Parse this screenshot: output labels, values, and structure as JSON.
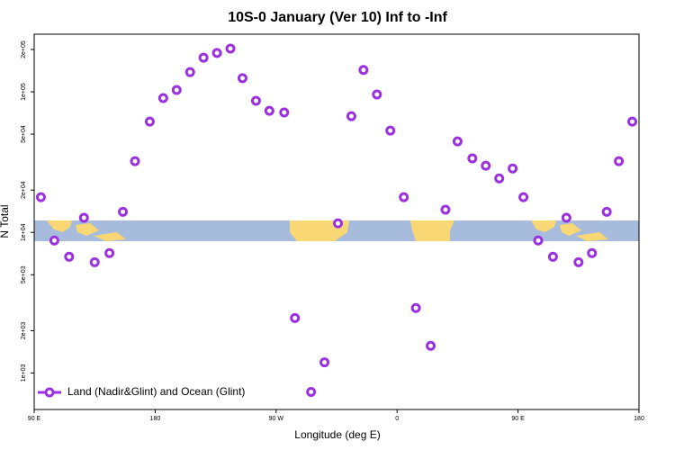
{
  "chart_data": {
    "type": "scatter",
    "title": "10S-0 January (Ver 10)   Inf to -Inf",
    "x_label": "Longitude (deg E)",
    "y_label": "N Total",
    "log_y": true,
    "xlim": [
      90,
      540
    ],
    "xticks": [
      {
        "value": 90,
        "label": "90 E"
      },
      {
        "value": 180,
        "label": "180"
      },
      {
        "value": 270,
        "label": "90 W"
      },
      {
        "value": 360,
        "label": "0"
      },
      {
        "value": 450,
        "label": "90 E"
      },
      {
        "value": 540,
        "label": "180"
      }
    ],
    "ylim": [
      550,
      257000
    ],
    "yticks": [
      {
        "value": 1000,
        "label": "1e+03"
      },
      {
        "value": 2000,
        "label": "2e+03"
      },
      {
        "value": 5000,
        "label": "5e+03"
      },
      {
        "value": 10000,
        "label": "1e+04"
      },
      {
        "value": 20000,
        "label": "2e+04"
      },
      {
        "value": 50000,
        "label": "5e+04"
      },
      {
        "value": 100000,
        "label": "1e+05"
      },
      {
        "value": 200000,
        "label": "2e+05"
      }
    ],
    "legend": "bottom-left",
    "series": [
      {
        "name": "Land (Nadir&Glint) and Ocean (Glint)",
        "color": "#9b30e0",
        "x": [
          95,
          105,
          116,
          127,
          135,
          146,
          156,
          165,
          176,
          186,
          196,
          206,
          216,
          226,
          236,
          245,
          255,
          265,
          276,
          284,
          296,
          306,
          316,
          326,
          335,
          345,
          355,
          365,
          374,
          385,
          396,
          405,
          416,
          426,
          436,
          446,
          454,
          465,
          476,
          486,
          495,
          505,
          516,
          525,
          535
        ],
        "values": [
          17800,
          8760,
          6710,
          12700,
          6140,
          7120,
          14000,
          32100,
          61400,
          90200,
          103000,
          138000,
          175000,
          189000,
          203000,
          125000,
          86300,
          73300,
          71300,
          2460,
          733,
          1190,
          11600,
          67100,
          143000,
          95800,
          53000,
          17800,
          2900,
          1560,
          14500,
          44400,
          33600,
          29800,
          24200,
          28500,
          17800,
          8760,
          6710,
          12700,
          6140,
          7120,
          14000,
          32100,
          61400
        ]
      }
    ]
  }
}
